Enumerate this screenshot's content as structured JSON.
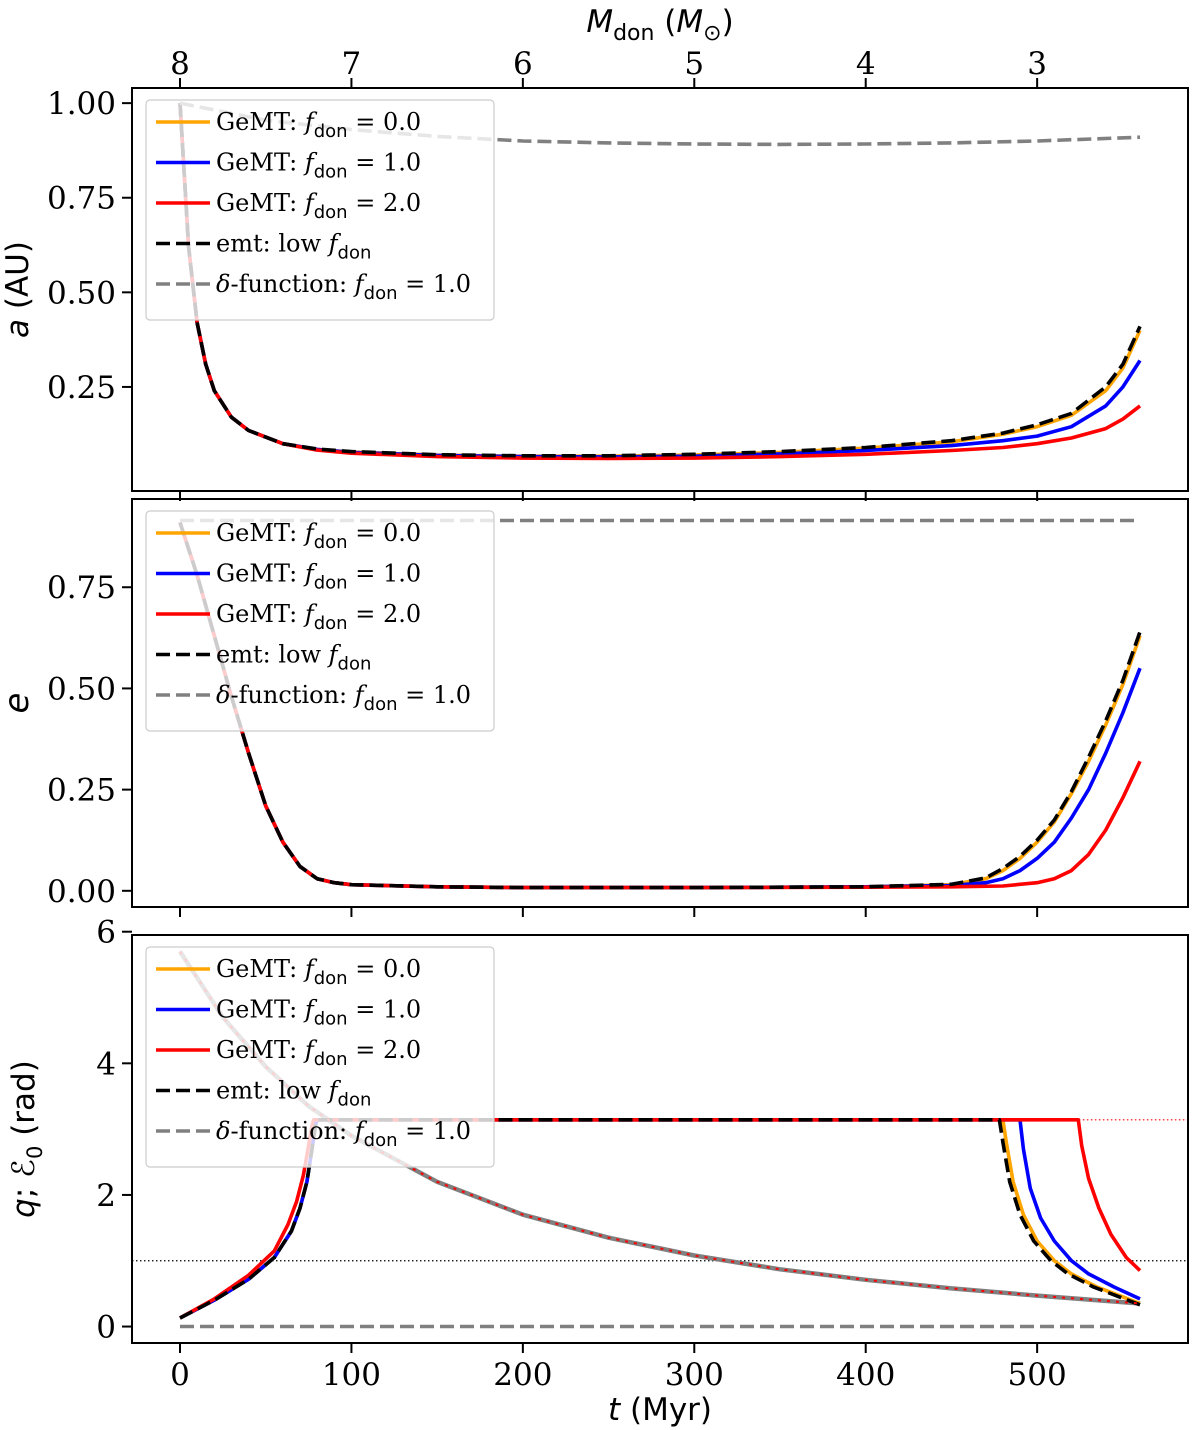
{
  "chart_data": [
    {
      "name": "panel-a",
      "type": "line",
      "ylabel": "a (AU)",
      "xlim": [
        -28,
        588
      ],
      "ylim": [
        -0.025,
        1.04
      ],
      "yticks": [
        0.25,
        0.5,
        0.75,
        1.0
      ],
      "ytick_labels": [
        "0.25",
        "0.50",
        "0.75",
        "1.00"
      ],
      "top_axis": {
        "label": "M_don (M⊙)",
        "tick_positions_myr": [
          0,
          100,
          200,
          300,
          400,
          500
        ],
        "tick_labels": [
          "8",
          "7",
          "6",
          "5",
          "4",
          "3"
        ]
      },
      "legend": [
        "GeMT: f_don = 0.0",
        "GeMT: f_don = 1.0",
        "GeMT: f_don = 2.0",
        "emt: low f_don",
        "δ-function: f_don = 1.0"
      ],
      "series": [
        {
          "name": "GeMT: f_don = 0.0",
          "color": "#ffa500",
          "style": "solid",
          "x": [
            0,
            5,
            10,
            15,
            20,
            30,
            40,
            60,
            80,
            100,
            150,
            200,
            250,
            300,
            350,
            400,
            450,
            480,
            500,
            520,
            540,
            550,
            560
          ],
          "y": [
            1.0,
            0.62,
            0.42,
            0.31,
            0.24,
            0.17,
            0.135,
            0.1,
            0.085,
            0.078,
            0.07,
            0.067,
            0.067,
            0.07,
            0.077,
            0.088,
            0.105,
            0.125,
            0.145,
            0.175,
            0.24,
            0.3,
            0.4
          ]
        },
        {
          "name": "GeMT: f_don = 1.0",
          "color": "#0000ff",
          "style": "solid",
          "x": [
            0,
            5,
            10,
            15,
            20,
            30,
            40,
            60,
            80,
            100,
            150,
            200,
            250,
            300,
            350,
            400,
            450,
            480,
            500,
            520,
            540,
            550,
            560
          ],
          "y": [
            1.0,
            0.62,
            0.42,
            0.31,
            0.24,
            0.17,
            0.135,
            0.1,
            0.085,
            0.077,
            0.069,
            0.066,
            0.065,
            0.067,
            0.073,
            0.082,
            0.095,
            0.108,
            0.12,
            0.145,
            0.2,
            0.25,
            0.32
          ]
        },
        {
          "name": "GeMT: f_don = 2.0",
          "color": "#ff0000",
          "style": "solid",
          "x": [
            0,
            5,
            10,
            15,
            20,
            30,
            40,
            60,
            80,
            100,
            150,
            200,
            250,
            300,
            350,
            400,
            450,
            480,
            500,
            520,
            540,
            550,
            560
          ],
          "y": [
            1.0,
            0.62,
            0.42,
            0.31,
            0.24,
            0.17,
            0.135,
            0.1,
            0.083,
            0.075,
            0.066,
            0.062,
            0.061,
            0.062,
            0.066,
            0.072,
            0.082,
            0.09,
            0.1,
            0.115,
            0.14,
            0.165,
            0.2
          ]
        },
        {
          "name": "emt: low f_don",
          "color": "#000000",
          "style": "dashed",
          "x": [
            0,
            5,
            10,
            15,
            20,
            30,
            40,
            60,
            80,
            100,
            150,
            200,
            250,
            300,
            350,
            400,
            450,
            480,
            500,
            520,
            540,
            550,
            560
          ],
          "y": [
            1.0,
            0.62,
            0.42,
            0.31,
            0.24,
            0.17,
            0.135,
            0.1,
            0.086,
            0.079,
            0.071,
            0.068,
            0.068,
            0.072,
            0.079,
            0.09,
            0.108,
            0.128,
            0.15,
            0.18,
            0.25,
            0.31,
            0.41
          ]
        },
        {
          "name": "δ-function: f_don = 1.0",
          "color": "#808080",
          "style": "dashed",
          "x": [
            0,
            50,
            100,
            150,
            200,
            250,
            300,
            350,
            400,
            450,
            500,
            560
          ],
          "y": [
            1.0,
            0.955,
            0.93,
            0.912,
            0.9,
            0.895,
            0.892,
            0.891,
            0.892,
            0.895,
            0.9,
            0.91
          ]
        }
      ]
    },
    {
      "name": "panel-e",
      "type": "line",
      "ylabel": "e",
      "xlim": [
        -28,
        588
      ],
      "ylim": [
        -0.04,
        0.968
      ],
      "yticks": [
        0.0,
        0.25,
        0.5,
        0.75
      ],
      "ytick_labels": [
        "0.00",
        "0.25",
        "0.50",
        "0.75"
      ],
      "legend": [
        "GeMT: f_don = 0.0",
        "GeMT: f_don = 1.0",
        "GeMT: f_don = 2.0",
        "emt: low f_don",
        "δ-function: f_don = 1.0"
      ],
      "series": [
        {
          "name": "GeMT: f_don = 0.0",
          "color": "#ffa500",
          "style": "solid",
          "x": [
            0,
            10,
            20,
            30,
            40,
            50,
            60,
            70,
            80,
            90,
            100,
            150,
            200,
            300,
            400,
            450,
            470,
            480,
            490,
            500,
            510,
            520,
            530,
            540,
            550,
            560
          ],
          "y": [
            0.91,
            0.78,
            0.63,
            0.48,
            0.34,
            0.21,
            0.12,
            0.06,
            0.03,
            0.02,
            0.015,
            0.01,
            0.008,
            0.008,
            0.01,
            0.015,
            0.03,
            0.05,
            0.08,
            0.12,
            0.17,
            0.24,
            0.32,
            0.41,
            0.51,
            0.63
          ]
        },
        {
          "name": "GeMT: f_don = 1.0",
          "color": "#0000ff",
          "style": "solid",
          "x": [
            0,
            10,
            20,
            30,
            40,
            50,
            60,
            70,
            80,
            90,
            100,
            150,
            200,
            300,
            400,
            450,
            470,
            480,
            490,
            500,
            510,
            520,
            530,
            540,
            550,
            560
          ],
          "y": [
            0.91,
            0.78,
            0.63,
            0.48,
            0.34,
            0.21,
            0.12,
            0.06,
            0.03,
            0.02,
            0.015,
            0.01,
            0.008,
            0.008,
            0.01,
            0.013,
            0.02,
            0.03,
            0.05,
            0.08,
            0.12,
            0.18,
            0.25,
            0.34,
            0.44,
            0.55
          ]
        },
        {
          "name": "GeMT: f_don = 2.0",
          "color": "#ff0000",
          "style": "solid",
          "x": [
            0,
            10,
            20,
            30,
            40,
            50,
            60,
            70,
            80,
            90,
            100,
            150,
            200,
            300,
            400,
            450,
            480,
            500,
            510,
            520,
            530,
            540,
            550,
            560
          ],
          "y": [
            0.91,
            0.78,
            0.63,
            0.48,
            0.34,
            0.21,
            0.12,
            0.06,
            0.03,
            0.02,
            0.015,
            0.01,
            0.008,
            0.008,
            0.009,
            0.01,
            0.012,
            0.02,
            0.03,
            0.05,
            0.09,
            0.15,
            0.23,
            0.32
          ]
        },
        {
          "name": "emt: low f_don",
          "color": "#000000",
          "style": "dashed",
          "x": [
            0,
            10,
            20,
            30,
            40,
            50,
            60,
            70,
            80,
            90,
            100,
            150,
            200,
            300,
            400,
            450,
            470,
            480,
            490,
            500,
            510,
            520,
            530,
            540,
            550,
            560
          ],
          "y": [
            0.91,
            0.78,
            0.63,
            0.48,
            0.34,
            0.21,
            0.12,
            0.06,
            0.03,
            0.02,
            0.015,
            0.01,
            0.008,
            0.008,
            0.01,
            0.016,
            0.032,
            0.055,
            0.085,
            0.125,
            0.175,
            0.245,
            0.33,
            0.42,
            0.52,
            0.64
          ]
        },
        {
          "name": "δ-function: f_don = 1.0",
          "color": "#808080",
          "style": "dashed",
          "x": [
            0,
            560
          ],
          "y": [
            0.915,
            0.915
          ]
        }
      ]
    },
    {
      "name": "panel-q",
      "type": "line",
      "ylabel": "q; ℰ₀ (rad)",
      "xlim": [
        -28,
        588
      ],
      "ylim": [
        -0.25,
        5.95
      ],
      "yticks": [
        0,
        2,
        4,
        6
      ],
      "ytick_labels": [
        "0",
        "2",
        "4",
        "6"
      ],
      "xlabel": "t (Myr)",
      "xticks": [
        0,
        100,
        200,
        300,
        400,
        500
      ],
      "xtick_labels": [
        "0",
        "100",
        "200",
        "300",
        "400",
        "500"
      ],
      "reference_lines": [
        {
          "y": 3.1416,
          "color": "#ff0000",
          "style": "dotted",
          "x_from": 480
        },
        {
          "y": 1.0,
          "color": "#000000",
          "style": "dotted"
        }
      ],
      "legend": [
        "GeMT: f_don = 0.0",
        "GeMT: f_don = 1.0",
        "GeMT: f_don = 2.0",
        "emt: low f_don",
        "δ-function: f_don = 1.0"
      ],
      "series": [
        {
          "name": "q (mass ratio)",
          "color": "#808080",
          "style": "solid",
          "x": [
            0,
            25,
            50,
            75,
            100,
            150,
            200,
            250,
            300,
            350,
            400,
            450,
            500,
            560
          ],
          "y": [
            5.7,
            4.7,
            3.95,
            3.35,
            2.9,
            2.2,
            1.7,
            1.35,
            1.08,
            0.87,
            0.71,
            0.58,
            0.47,
            0.35
          ]
        },
        {
          "name": "GeMT: f_don = 0.0",
          "color": "#ffa500",
          "style": "solid",
          "x": [
            0,
            20,
            40,
            55,
            65,
            70,
            74,
            77,
            79,
            80,
            100,
            200,
            300,
            400,
            480,
            482,
            486,
            492,
            500,
            510,
            520,
            535,
            550,
            560
          ],
          "y": [
            0.13,
            0.4,
            0.72,
            1.05,
            1.45,
            1.8,
            2.2,
            2.7,
            3.05,
            3.1416,
            3.1416,
            3.1416,
            3.1416,
            3.1416,
            3.1416,
            2.8,
            2.2,
            1.7,
            1.3,
            1.0,
            0.8,
            0.6,
            0.45,
            0.35
          ]
        },
        {
          "name": "GeMT: f_don = 1.0",
          "color": "#0000ff",
          "style": "solid",
          "x": [
            0,
            20,
            40,
            55,
            65,
            70,
            74,
            77,
            79,
            80,
            100,
            200,
            300,
            400,
            490,
            492,
            496,
            502,
            510,
            520,
            530,
            545,
            560
          ],
          "y": [
            0.13,
            0.4,
            0.72,
            1.05,
            1.45,
            1.8,
            2.2,
            2.7,
            3.05,
            3.1416,
            3.1416,
            3.1416,
            3.1416,
            3.1416,
            3.1416,
            2.7,
            2.1,
            1.65,
            1.3,
            1.0,
            0.8,
            0.6,
            0.42
          ]
        },
        {
          "name": "GeMT: f_don = 2.0",
          "color": "#ff0000",
          "style": "solid",
          "x": [
            0,
            20,
            40,
            55,
            63,
            68,
            72,
            75,
            77,
            78,
            100,
            200,
            300,
            400,
            524,
            526,
            530,
            536,
            543,
            552,
            560
          ],
          "y": [
            0.13,
            0.42,
            0.78,
            1.15,
            1.55,
            1.9,
            2.3,
            2.75,
            3.05,
            3.1416,
            3.1416,
            3.1416,
            3.1416,
            3.1416,
            3.1416,
            2.75,
            2.25,
            1.8,
            1.4,
            1.05,
            0.85
          ]
        },
        {
          "name": "emt: low f_don",
          "color": "#000000",
          "style": "dashed",
          "x": [
            0,
            20,
            40,
            55,
            65,
            70,
            74,
            77,
            79,
            80,
            100,
            200,
            300,
            400,
            478,
            480,
            484,
            490,
            498,
            508,
            518,
            533,
            548,
            560
          ],
          "y": [
            0.13,
            0.4,
            0.72,
            1.05,
            1.45,
            1.8,
            2.2,
            2.7,
            3.05,
            3.1416,
            3.1416,
            3.1416,
            3.1416,
            3.1416,
            3.1416,
            2.8,
            2.2,
            1.7,
            1.3,
            1.0,
            0.8,
            0.6,
            0.45,
            0.33
          ]
        },
        {
          "name": "δ-function: f_don = 1.0",
          "color": "#808080",
          "style": "dashed",
          "x": [
            0,
            560
          ],
          "y": [
            0.0,
            0.0
          ]
        }
      ]
    }
  ]
}
